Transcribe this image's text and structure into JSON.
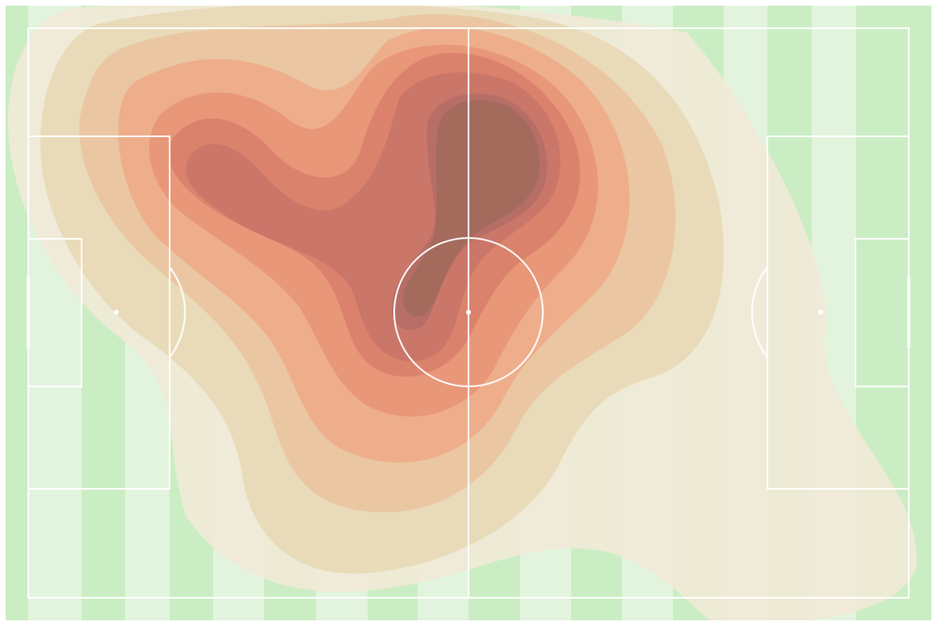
{
  "pitch": {
    "colors": {
      "outer": "#ffffff",
      "grass_dark": "#cbedc4",
      "grass_light": "#e3f4de",
      "lines": "#ffffff"
    },
    "stripe_pattern": [
      "dark",
      "light",
      "dark",
      "light",
      "dark",
      "light",
      "dark",
      "light",
      "dark",
      "light",
      "dark",
      "light",
      "dark",
      "light",
      "dark",
      "light",
      "dark",
      "light"
    ]
  },
  "heatmap": {
    "colormap": [
      "#efe9d8",
      "#e4d6b0",
      "#ecbf95",
      "#f1a07d",
      "#e48a6f",
      "#d07868",
      "#b96c64",
      "#a0685a"
    ],
    "peak_color": "#a0685a",
    "description_levels": 8
  }
}
